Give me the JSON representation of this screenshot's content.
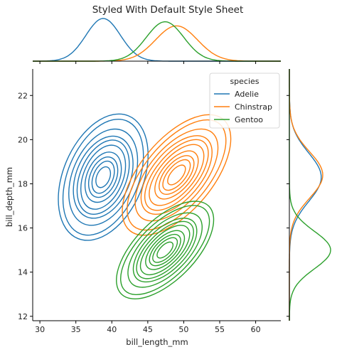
{
  "chart_data": {
    "type": "kde-joint",
    "title": "Styled With Default Style Sheet",
    "xlabel": "bill_length_mm",
    "ylabel": "bill_depth_mm",
    "xlim": [
      29,
      63.5
    ],
    "ylim": [
      11.8,
      23.2
    ],
    "xticks": [
      30,
      35,
      40,
      45,
      50,
      55,
      60
    ],
    "yticks": [
      12,
      14,
      16,
      18,
      20,
      22
    ],
    "legend": {
      "title": "species",
      "placement": "top-right"
    },
    "series": [
      {
        "name": "Adelie",
        "color": "#1f77b4",
        "x_center": 38.8,
        "y_center": 18.3,
        "x_sd": 2.4,
        "y_sd": 1.1,
        "rho": 0.35
      },
      {
        "name": "Chinstrap",
        "color": "#ff7f0e",
        "x_center": 49.0,
        "y_center": 18.4,
        "x_sd": 2.9,
        "y_sd": 1.05,
        "rho": 0.6
      },
      {
        "name": "Gentoo",
        "color": "#2ca02c",
        "x_center": 47.4,
        "y_center": 15.0,
        "x_sd": 2.6,
        "y_sd": 0.85,
        "rho": 0.62
      }
    ]
  }
}
